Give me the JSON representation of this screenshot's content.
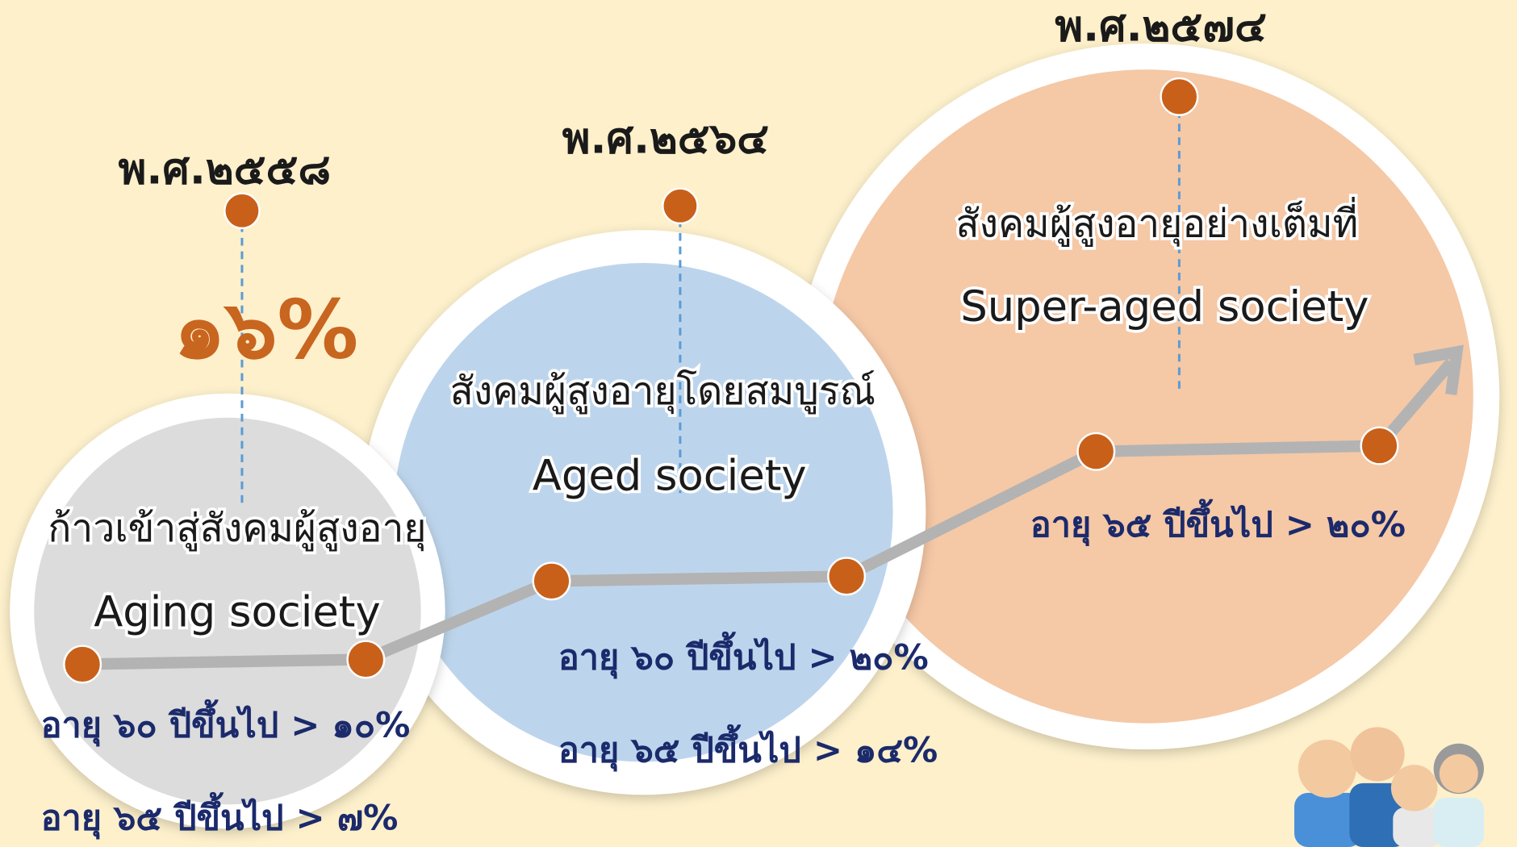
{
  "stages": [
    {
      "year": "พ.ศ.๒๕๕๘",
      "highlight": "๑๖%",
      "title_th": "ก้าวเข้าสู่สังคมผู้สูงอายุ",
      "title_en": "Aging society",
      "criteria": [
        "อายุ ๖๐ ปีขึ้นไป > ๑๐%",
        "อายุ ๖๕ ปีขึ้นไป > ๗%"
      ]
    },
    {
      "year": "พ.ศ.๒๕๖๔",
      "title_th": "สังคมผู้สูงอายุโดยสมบูรณ์",
      "title_en": "Aged society",
      "criteria": [
        "อายุ ๖๐ ปีขึ้นไป > ๒๐%",
        "อายุ ๖๕ ปีขึ้นไป > ๑๔%"
      ]
    },
    {
      "year": "พ.ศ.๒๕๗๔",
      "title_th": "สังคมผู้สูงอายุอย่างเต็มที่",
      "title_en": "Super-aged society",
      "criteria": [
        "อายุ ๖๕ ปีขึ้นไป > ๒๐%"
      ]
    }
  ]
}
